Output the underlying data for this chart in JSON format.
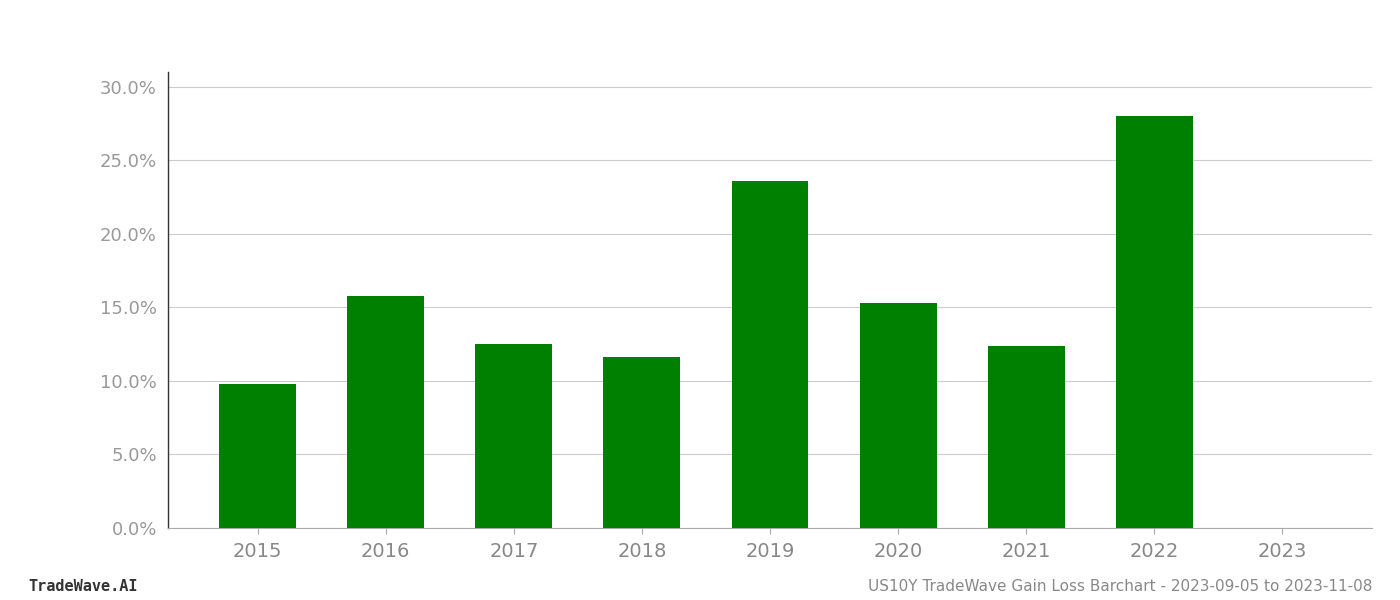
{
  "years": [
    2015,
    2016,
    2017,
    2018,
    2019,
    2020,
    2021,
    2022,
    2023
  ],
  "values": [
    0.098,
    0.158,
    0.125,
    0.116,
    0.236,
    0.153,
    0.124,
    0.28,
    null
  ],
  "bar_color": "#008000",
  "background_color": "#ffffff",
  "grid_color": "#cccccc",
  "ylim": [
    0,
    0.31
  ],
  "yticks": [
    0.0,
    0.05,
    0.1,
    0.15,
    0.2,
    0.25,
    0.3
  ],
  "footer_left": "TradeWave.AI",
  "footer_right": "US10Y TradeWave Gain Loss Barchart - 2023-09-05 to 2023-11-08",
  "figsize": [
    14.0,
    6.0
  ],
  "dpi": 100
}
